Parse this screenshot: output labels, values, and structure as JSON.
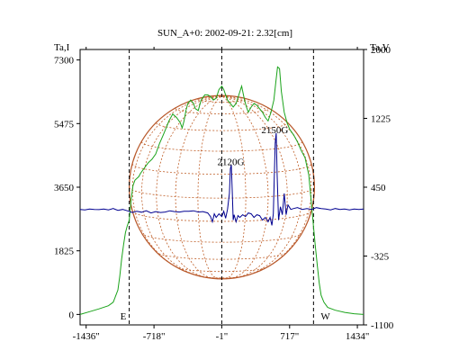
{
  "chart_data": {
    "type": "line",
    "title": "SUN_A+0: 2002-09-21: 2.32[cm]",
    "left_axis_label": "Ta,I",
    "right_axis_label": "Ta,V",
    "x_ticks": [
      {
        "value": -1436,
        "label": "-1436\""
      },
      {
        "value": -718,
        "label": "-718\""
      },
      {
        "value": -1,
        "label": "-1\""
      },
      {
        "value": 717,
        "label": "717\""
      },
      {
        "value": 1434,
        "label": "1434\""
      }
    ],
    "left_ticks": [
      {
        "value": 0,
        "label": "0"
      },
      {
        "value": 1825,
        "label": "1825"
      },
      {
        "value": 3650,
        "label": "3650"
      },
      {
        "value": 5475,
        "label": "5475"
      },
      {
        "value": 7300,
        "label": "7300"
      }
    ],
    "right_ticks": [
      {
        "value": -1100,
        "label": "-1100"
      },
      {
        "value": -325,
        "label": "-325"
      },
      {
        "value": 450,
        "label": "450"
      },
      {
        "value": 1225,
        "label": "1225"
      },
      {
        "value": 2000,
        "label": "2000"
      }
    ],
    "xlim": [
      -1500,
      1500
    ],
    "ylim_left": [
      -300,
      7600
    ],
    "ylim_right": [
      -1100,
      2000
    ],
    "limb_markers": [
      {
        "x": -980,
        "label": "E"
      },
      {
        "x": -1,
        "label": ""
      },
      {
        "x": 970,
        "label": "W"
      }
    ],
    "solar_radius_arcsec": 980,
    "grid": "heliographic",
    "annotations": [
      {
        "text": "2120G",
        "x": 95,
        "y_right": 700
      },
      {
        "text": "2150G",
        "x": 560,
        "y_right": 1060
      }
    ],
    "series": [
      {
        "axis": "left",
        "color": "#1aa31a",
        "x": [
          -1500,
          -1400,
          -1300,
          -1200,
          -1150,
          -1100,
          -1080,
          -1060,
          -1040,
          -1020,
          -1000,
          -980,
          -960,
          -940,
          -920,
          -900,
          -880,
          -860,
          -820,
          -780,
          -740,
          -700,
          -660,
          -620,
          -590,
          -560,
          -520,
          -480,
          -440,
          -420,
          -400,
          -380,
          -360,
          -330,
          -300,
          -280,
          -250,
          -220,
          -180,
          -150,
          -120,
          -90,
          -60,
          -30,
          0,
          20,
          40,
          60,
          90,
          120,
          150,
          180,
          210,
          240,
          260,
          280,
          310,
          340,
          370,
          400,
          430,
          460,
          490,
          520,
          550,
          570,
          590,
          610,
          630,
          660,
          690,
          720,
          760,
          800,
          840,
          880,
          920,
          950,
          970,
          990,
          1010,
          1030,
          1050,
          1080,
          1120,
          1200,
          1300,
          1400,
          1500
        ],
        "y": [
          0,
          80,
          160,
          250,
          350,
          700,
          1100,
          1600,
          2000,
          2350,
          2550,
          2700,
          3300,
          3700,
          3850,
          3900,
          3950,
          4050,
          4200,
          4350,
          4450,
          4600,
          4900,
          5150,
          5350,
          5550,
          5750,
          5650,
          5500,
          5350,
          5550,
          5850,
          6050,
          6150,
          6050,
          5900,
          5850,
          6150,
          6300,
          6300,
          6250,
          6150,
          6200,
          6450,
          6550,
          6450,
          6300,
          6150,
          6050,
          5950,
          6050,
          6300,
          6550,
          6150,
          5950,
          5800,
          5950,
          6050,
          6000,
          5900,
          5800,
          5650,
          5550,
          5800,
          6150,
          6650,
          7100,
          7050,
          6400,
          5800,
          5500,
          5300,
          5150,
          4950,
          4700,
          4500,
          4000,
          3100,
          2500,
          1950,
          1400,
          900,
          550,
          350,
          200,
          120,
          60,
          20,
          0
        ]
      },
      {
        "axis": "right",
        "color": "#000090",
        "x": [
          -1500,
          -1450,
          -1400,
          -1350,
          -1300,
          -1250,
          -1200,
          -1150,
          -1100,
          -1050,
          -1000,
          -950,
          -900,
          -850,
          -800,
          -750,
          -700,
          -650,
          -600,
          -550,
          -500,
          -450,
          -400,
          -350,
          -300,
          -250,
          -200,
          -150,
          -120,
          -100,
          -80,
          -60,
          -30,
          0,
          20,
          40,
          60,
          80,
          90,
          100,
          110,
          120,
          130,
          140,
          150,
          170,
          190,
          220,
          250,
          280,
          310,
          340,
          370,
          400,
          430,
          460,
          490,
          510,
          530,
          545,
          555,
          565,
          575,
          585,
          600,
          620,
          640,
          660,
          680,
          700,
          730,
          760,
          800,
          850,
          900,
          950,
          1000,
          1050,
          1100,
          1150,
          1200,
          1250,
          1300,
          1350,
          1400,
          1450,
          1500
        ],
        "y": [
          200,
          195,
          205,
          200,
          198,
          205,
          195,
          210,
          190,
          200,
          185,
          165,
          178,
          168,
          185,
          160,
          175,
          165,
          170,
          185,
          175,
          170,
          180,
          178,
          185,
          170,
          175,
          160,
          120,
          60,
          150,
          110,
          150,
          120,
          180,
          100,
          200,
          380,
          660,
          700,
          420,
          80,
          140,
          100,
          60,
          130,
          110,
          140,
          120,
          160,
          150,
          110,
          140,
          130,
          80,
          110,
          60,
          110,
          20,
          150,
          580,
          950,
          1060,
          600,
          80,
          230,
          140,
          380,
          140,
          250,
          200,
          210,
          220,
          200,
          210,
          200,
          220,
          210,
          205,
          195,
          210,
          200,
          205,
          195,
          205,
          200,
          205
        ]
      }
    ]
  }
}
